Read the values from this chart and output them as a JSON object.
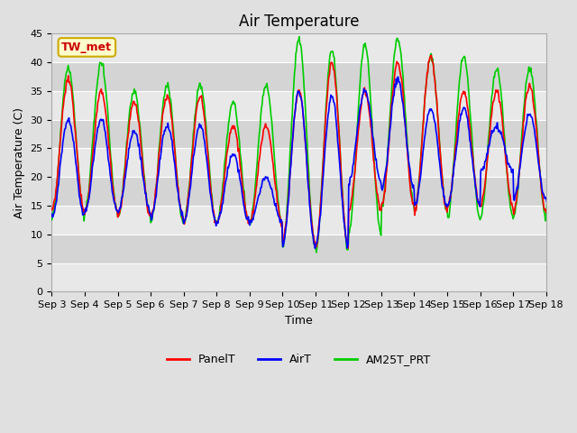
{
  "title": "Air Temperature",
  "xlabel": "Time",
  "ylabel": "Air Temperature (C)",
  "ylim": [
    0,
    45
  ],
  "yticks": [
    0,
    5,
    10,
    15,
    20,
    25,
    30,
    35,
    40,
    45
  ],
  "annotation_text": "TW_met",
  "annotation_facecolor": "#FFFFCC",
  "annotation_edgecolor": "#CCAA00",
  "annotation_textcolor": "#CC0000",
  "series_colors": [
    "#FF0000",
    "#0000FF",
    "#00CC00"
  ],
  "series_names": [
    "PanelT",
    "AirT",
    "AM25T_PRT"
  ],
  "series_lw": [
    1.2,
    1.2,
    1.2
  ],
  "bg_color": "#E0E0E0",
  "plot_bg_light": "#DCDCDC",
  "plot_bg_dark": "#C8C8C8",
  "grid_color": "#FFFFFF",
  "tick_fontsize": 8,
  "label_fontsize": 9,
  "title_fontsize": 12,
  "daily_min_panel": [
    14,
    14,
    13,
    13,
    12,
    12,
    12,
    9,
    8,
    14,
    15,
    14,
    15,
    15,
    14,
    14
  ],
  "daily_max_panel": [
    37,
    35,
    33,
    34,
    34,
    29,
    29,
    35,
    40,
    35,
    40,
    41,
    35,
    35,
    36,
    36
  ],
  "daily_min_air": [
    13,
    14,
    14,
    13,
    12,
    12,
    12,
    8,
    8,
    19,
    18,
    15,
    15,
    21,
    16,
    15
  ],
  "daily_max_air": [
    30,
    30,
    28,
    29,
    29,
    24,
    20,
    35,
    34,
    35,
    37,
    32,
    32,
    29,
    31,
    30
  ],
  "daily_min_green": [
    13,
    14,
    13,
    12,
    12,
    12,
    12,
    8,
    7,
    10,
    15,
    14,
    13,
    13,
    13,
    15
  ],
  "daily_max_green": [
    39,
    40,
    35,
    36,
    36,
    33,
    36,
    44,
    42,
    43,
    44,
    41,
    41,
    39,
    39,
    39
  ]
}
